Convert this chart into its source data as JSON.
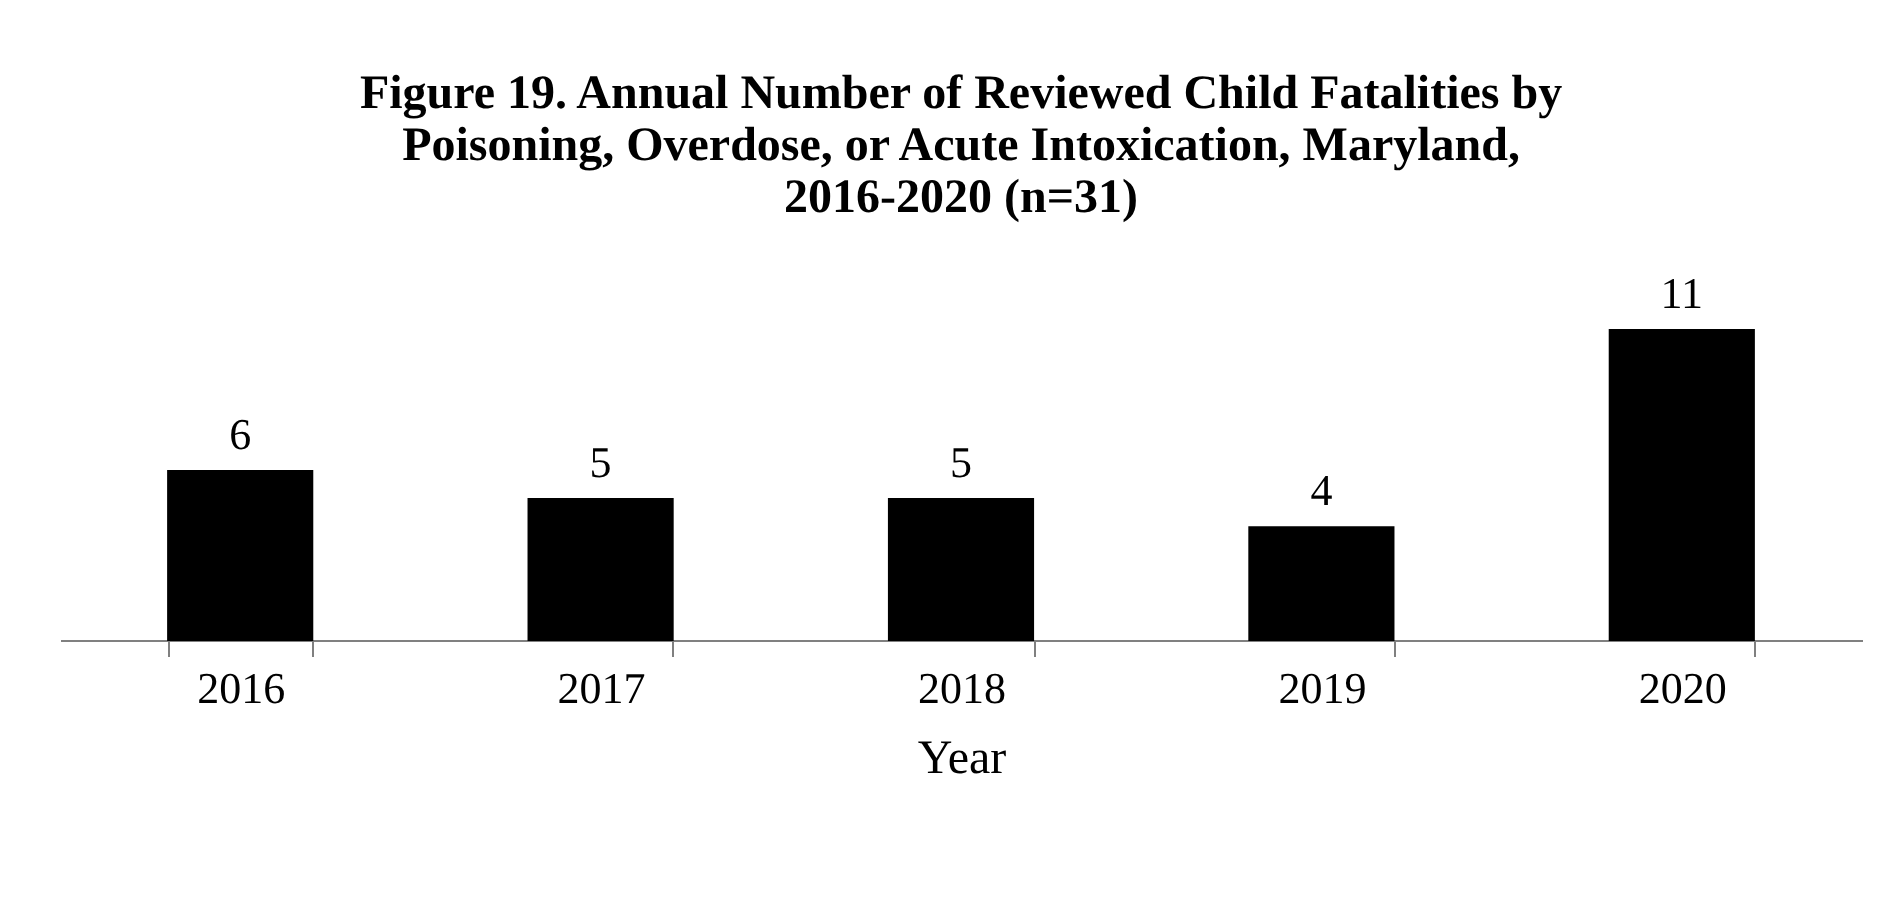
{
  "chart_data": {
    "type": "bar",
    "title": "Figure 19. Annual Number of Reviewed Child Fatalities by Poisoning, Overdose, or Acute Intoxication, Maryland, 2016-2020 (n=31)",
    "xlabel": "Year",
    "categories": [
      "2016",
      "2017",
      "2018",
      "2019",
      "2020"
    ],
    "values": [
      6,
      5,
      5,
      4,
      11
    ],
    "color": "#000000",
    "data_labels": true,
    "tick_labels": "x",
    "grid": false
  }
}
